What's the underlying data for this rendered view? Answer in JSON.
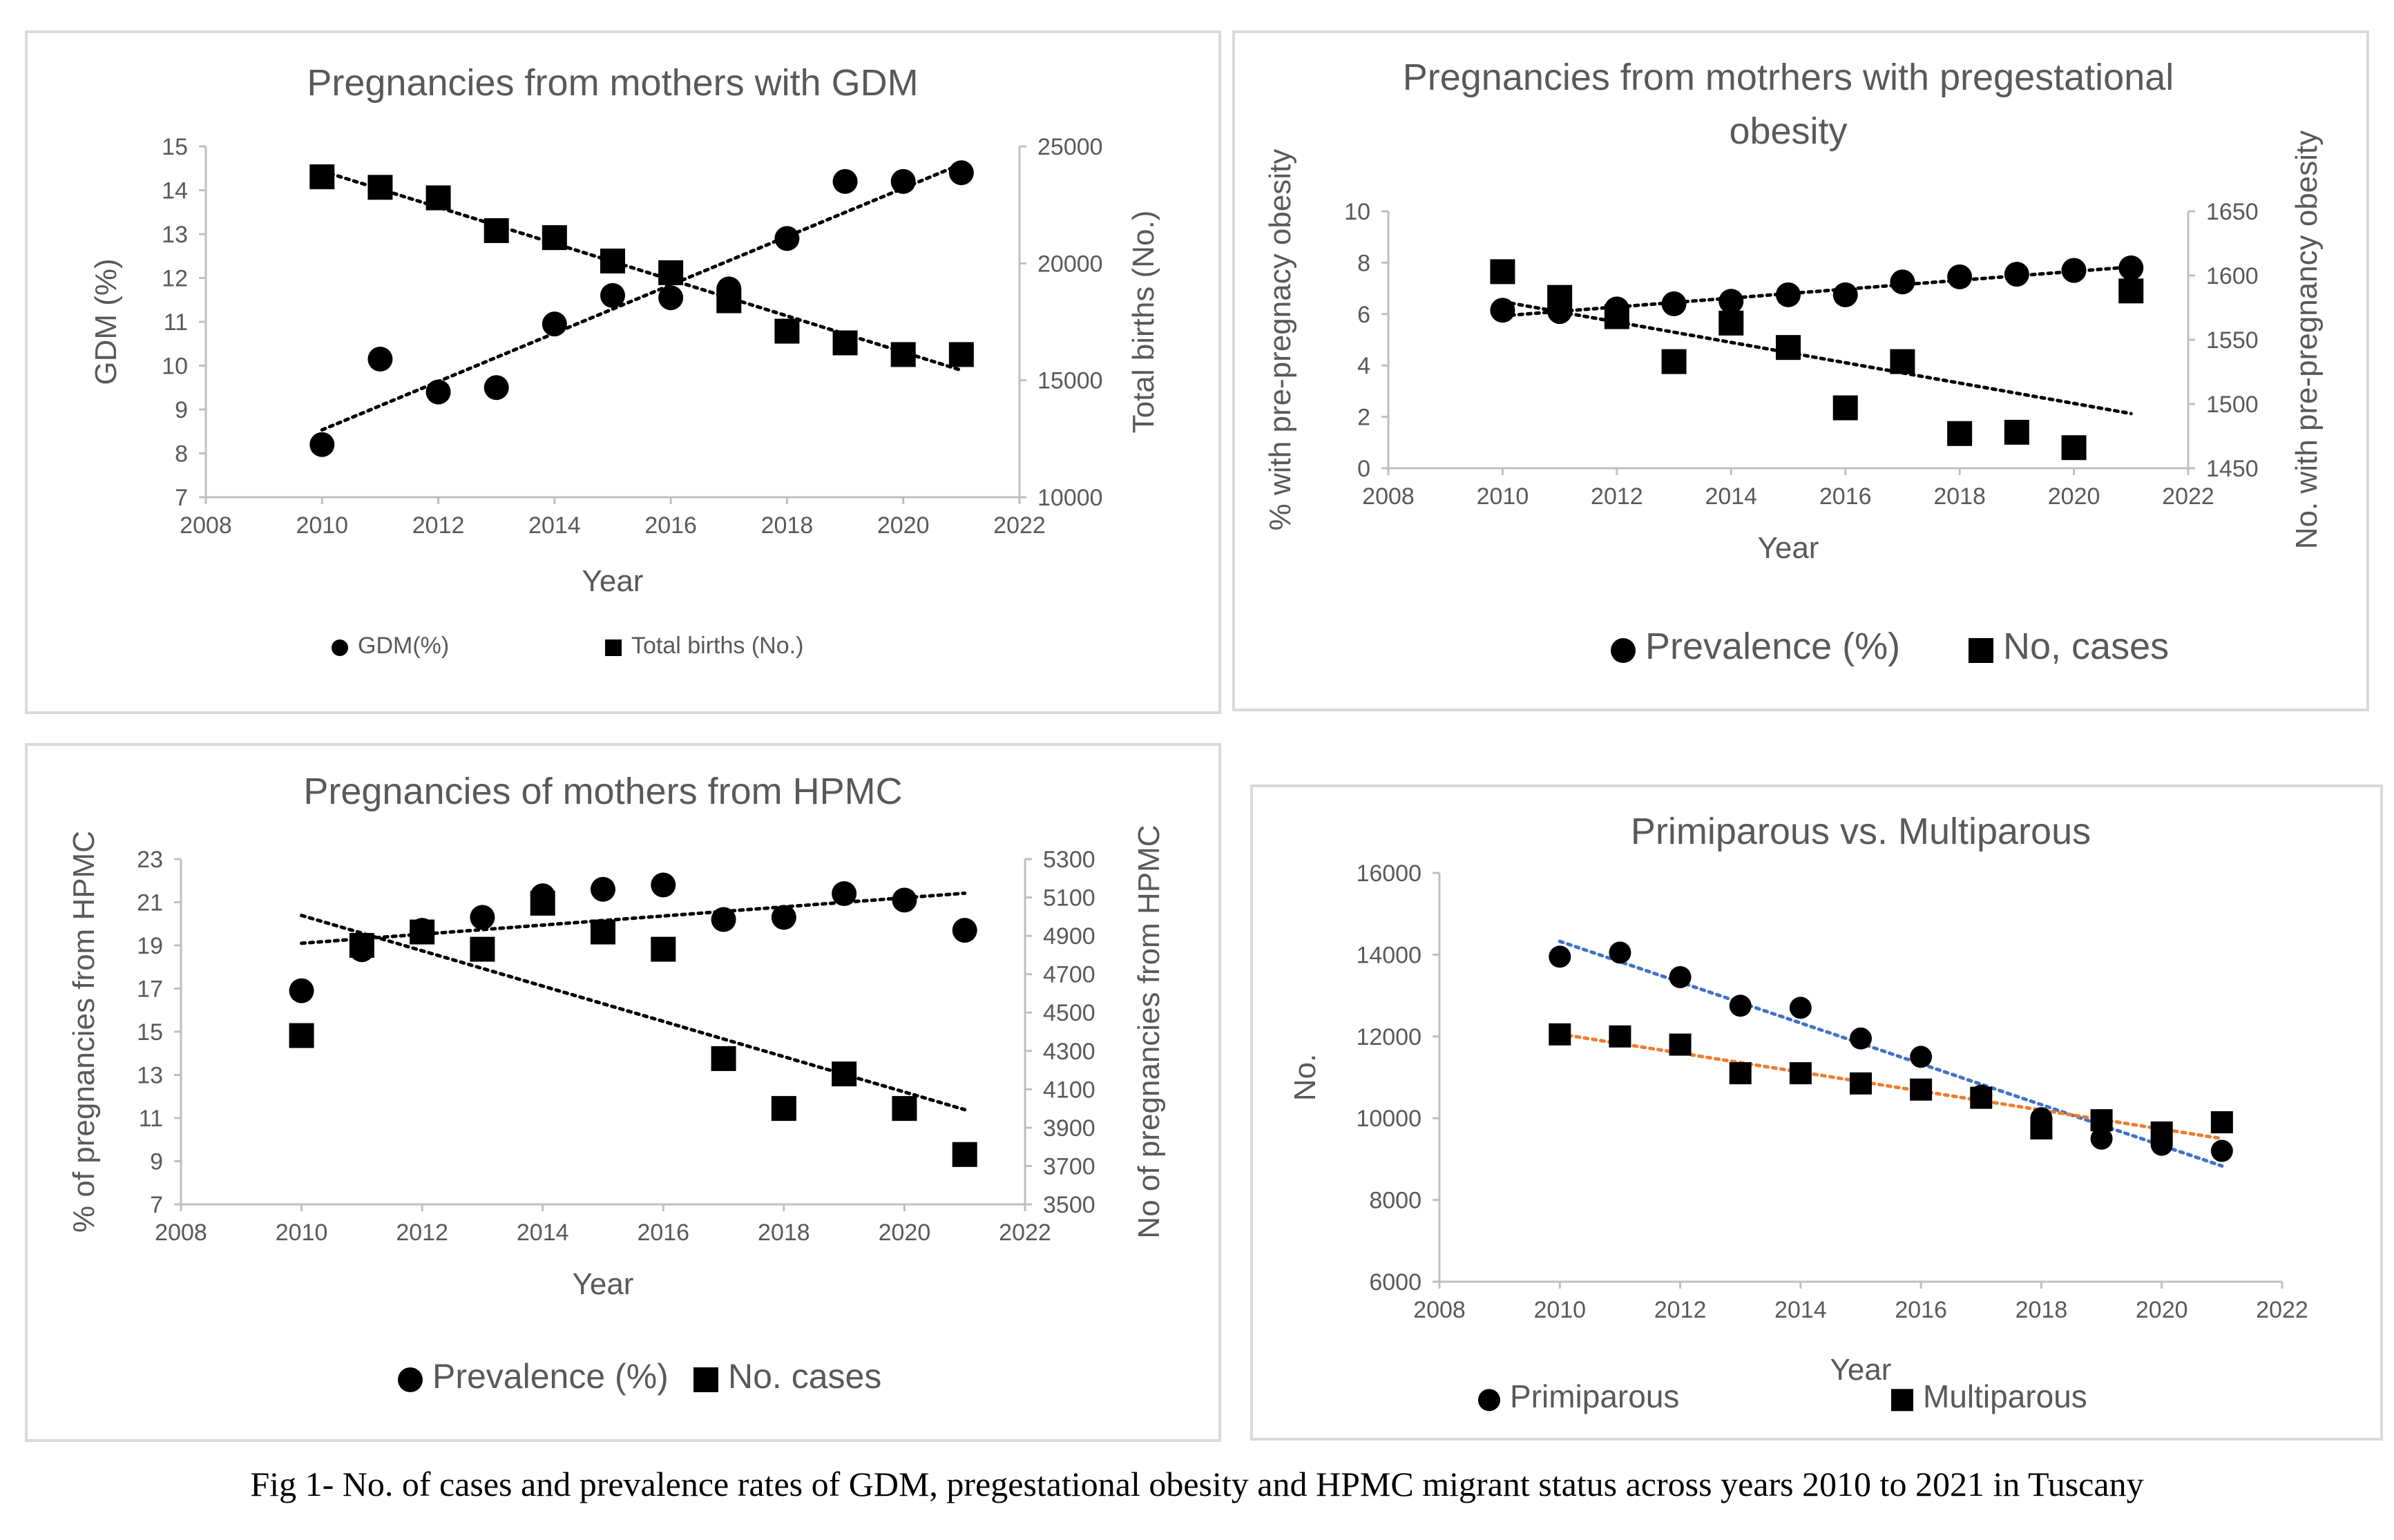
{
  "caption": "Fig 1- No. of cases and prevalence rates of GDM, pregestational obesity and HPMC migrant status across years 2010 to 2021 in Tuscany",
  "chart_data": [
    {
      "id": "gdm",
      "type": "scatter",
      "title": [
        "Pregnancies from mothers with GDM"
      ],
      "xlabel": "Year",
      "ylabel_left": "GDM (%)",
      "ylabel_right": "Total births (No.)",
      "xlim": [
        2008,
        2022
      ],
      "xticks": [
        2008,
        2010,
        2012,
        2014,
        2016,
        2018,
        2020,
        2022
      ],
      "ylim_left": [
        7,
        15
      ],
      "yticks_left": [
        7,
        8,
        9,
        10,
        11,
        12,
        13,
        14,
        15
      ],
      "ylim_right": [
        10000,
        25000
      ],
      "yticks_right": [
        10000,
        15000,
        20000,
        25000
      ],
      "legend_position": "bottom",
      "series": [
        {
          "name": "GDM(%)",
          "marker": "circle",
          "axis": "left",
          "color": "#000000",
          "trendline": "linear",
          "x": [
            2010,
            2011,
            2012,
            2013,
            2014,
            2015,
            2016,
            2017,
            2018,
            2019,
            2020,
            2021
          ],
          "y": [
            8.2,
            10.15,
            9.4,
            9.5,
            10.95,
            11.6,
            11.55,
            11.75,
            12.9,
            14.2,
            14.2,
            14.4
          ]
        },
        {
          "name": "Total births (No.)",
          "marker": "square",
          "axis": "right",
          "color": "#000000",
          "trendline": "linear",
          "x": [
            2010,
            2011,
            2012,
            2013,
            2014,
            2015,
            2016,
            2017,
            2018,
            2019,
            2020,
            2021
          ],
          "y": [
            23700,
            23250,
            22800,
            21400,
            21100,
            20100,
            19600,
            18400,
            17100,
            16600,
            16100,
            16100
          ]
        }
      ]
    },
    {
      "id": "obesity",
      "type": "scatter",
      "title": [
        "Pregnancies from motrhers with pregestational",
        "obesity"
      ],
      "xlabel": "Year",
      "ylabel_left": "% with pre-pregnacy obesity",
      "ylabel_right": "No. with pre-pregnancy obesity",
      "xlim": [
        2008,
        2022
      ],
      "xticks": [
        2008,
        2010,
        2012,
        2014,
        2016,
        2018,
        2020,
        2022
      ],
      "ylim_left": [
        0,
        10
      ],
      "yticks_left": [
        0,
        2,
        4,
        6,
        8,
        10
      ],
      "ylim_right": [
        1450,
        1650
      ],
      "yticks_right": [
        1450,
        1500,
        1550,
        1600,
        1650
      ],
      "legend_position": "bottom",
      "series": [
        {
          "name": "Prevalence (%)",
          "marker": "circle",
          "axis": "left",
          "color": "#000000",
          "trendline": "linear",
          "x": [
            2010,
            2011,
            2012,
            2013,
            2014,
            2015,
            2016,
            2017,
            2018,
            2019,
            2020,
            2021
          ],
          "y": [
            6.15,
            6.1,
            6.2,
            6.4,
            6.5,
            6.75,
            6.75,
            7.25,
            7.45,
            7.55,
            7.7,
            7.8
          ]
        },
        {
          "name": "No, cases",
          "marker": "square",
          "axis": "right",
          "color": "#000000",
          "trendline": "linear",
          "x": [
            2010,
            2011,
            2012,
            2013,
            2014,
            2015,
            2016,
            2017,
            2018,
            2019,
            2020,
            2021
          ],
          "y": [
            1603,
            1583,
            1568,
            1533,
            1563,
            1544,
            1497,
            1533,
            1477,
            1478,
            1466,
            1588
          ]
        }
      ]
    },
    {
      "id": "hpmc",
      "type": "scatter",
      "title": [
        "Pregnancies of mothers from HPMC"
      ],
      "xlabel": "Year",
      "ylabel_left": "% of pregnancies from HPMC",
      "ylabel_right": "No of pregnancies from HPMC",
      "xlim": [
        2008,
        2022
      ],
      "xticks": [
        2008,
        2010,
        2012,
        2014,
        2016,
        2018,
        2020,
        2022
      ],
      "ylim_left": [
        7,
        23
      ],
      "yticks_left": [
        7,
        9,
        11,
        13,
        15,
        17,
        19,
        21,
        23
      ],
      "ylim_right": [
        3500,
        5300
      ],
      "yticks_right": [
        3500,
        3700,
        3900,
        4100,
        4300,
        4500,
        4700,
        4900,
        5100,
        5300
      ],
      "legend_position": "bottom",
      "series": [
        {
          "name": "Prevalence (%)",
          "marker": "circle",
          "axis": "left",
          "color": "#000000",
          "trendline": "linear",
          "x": [
            2010,
            2011,
            2012,
            2013,
            2014,
            2015,
            2016,
            2017,
            2018,
            2019,
            2020,
            2021
          ],
          "y": [
            16.9,
            18.8,
            19.7,
            20.3,
            21.3,
            21.6,
            21.8,
            20.2,
            20.3,
            21.4,
            21.1,
            19.7
          ]
        },
        {
          "name": "No. cases",
          "marker": "square",
          "axis": "right",
          "color": "#000000",
          "trendline": "linear",
          "x": [
            2010,
            2011,
            2012,
            2013,
            2014,
            2015,
            2016,
            2017,
            2018,
            2019,
            2020,
            2021
          ],
          "y": [
            4380,
            4850,
            4920,
            4830,
            5070,
            4920,
            4830,
            4260,
            4000,
            4180,
            4000,
            3760
          ]
        }
      ]
    },
    {
      "id": "parity",
      "type": "scatter",
      "title": [
        "Primiparous vs. Multiparous"
      ],
      "xlabel": "Year",
      "ylabel_left": "No.",
      "ylabel_right": "",
      "xlim": [
        2008,
        2022
      ],
      "xticks": [
        2008,
        2010,
        2012,
        2014,
        2016,
        2018,
        2020,
        2022
      ],
      "ylim_left": [
        6000,
        16000
      ],
      "yticks_left": [
        6000,
        8000,
        10000,
        12000,
        14000,
        16000
      ],
      "legend_position": "bottom",
      "series": [
        {
          "name": "Primiparous",
          "marker": "circle",
          "axis": "left",
          "color": "#000000",
          "trendline": "linear",
          "trend_color": "#4472c4",
          "x": [
            2010,
            2011,
            2012,
            2013,
            2014,
            2015,
            2016,
            2017,
            2018,
            2019,
            2020,
            2021
          ],
          "y": [
            13950,
            14050,
            13450,
            12750,
            12700,
            11950,
            11500,
            10550,
            10000,
            9500,
            9350,
            9200
          ]
        },
        {
          "name": "Multiparous",
          "marker": "square",
          "axis": "left",
          "color": "#000000",
          "trendline": "linear",
          "trend_color": "#ed7d31",
          "x": [
            2010,
            2011,
            2012,
            2013,
            2014,
            2015,
            2016,
            2017,
            2018,
            2019,
            2020,
            2021
          ],
          "y": [
            12050,
            12000,
            11800,
            11100,
            11100,
            10850,
            10700,
            10500,
            9750,
            9950,
            9650,
            9900
          ]
        }
      ]
    }
  ]
}
